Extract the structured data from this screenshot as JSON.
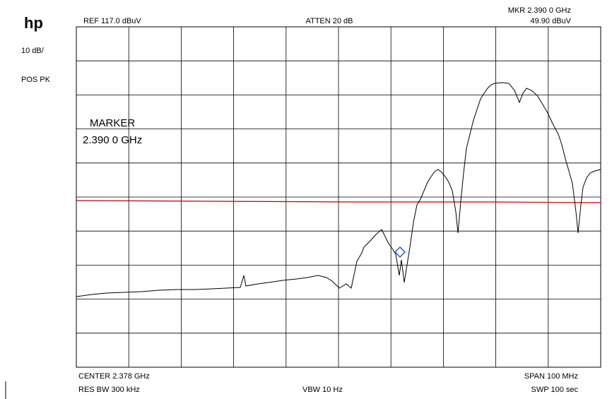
{
  "header": {
    "logo": "hp",
    "ref": "REF  117.0 dBuV",
    "atten": "ATTEN 20 dB",
    "marker_freq": "MKR 2.390 0 GHz",
    "marker_level": "49.90 dBuV"
  },
  "side": {
    "scale": "10 dB/",
    "detector": "POS PK"
  },
  "annotation": {
    "title": "MARKER",
    "freq": "2.390 0 GHz"
  },
  "footer": {
    "center": "CENTER 2.378 GHz",
    "span": "SPAN 100 MHz",
    "rbw": "RES BW 300 kHz",
    "vbw": "VBW 10  Hz",
    "sweep": "SWP 100  sec"
  }
}
